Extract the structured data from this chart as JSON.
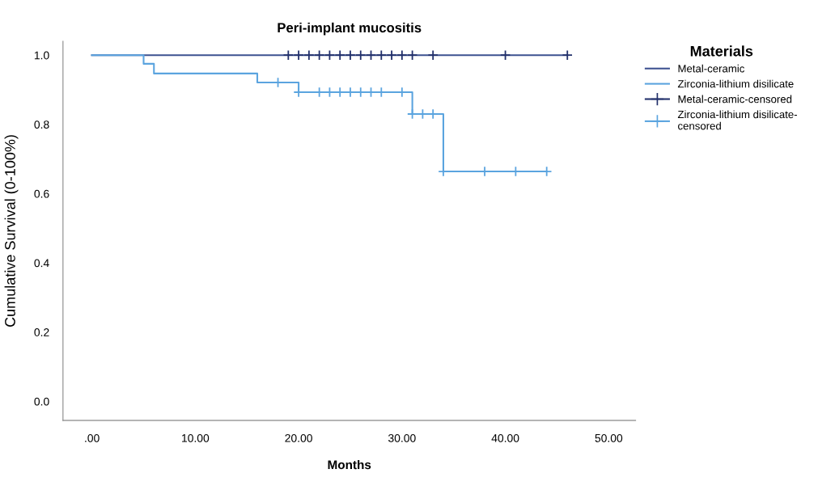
{
  "chart_data": {
    "type": "step",
    "title": "Peri-implant mucositis",
    "xlabel": "Months",
    "ylabel": "Cumulative Survival (0-100%)",
    "legend_title": "Materials",
    "legend": "right",
    "xlim": [
      -2.8,
      52.6
    ],
    "ylim": [
      -0.055,
      1.04
    ],
    "xticks": [
      {
        "value": 0,
        "label": ".00"
      },
      {
        "value": 10,
        "label": "10.00"
      },
      {
        "value": 20,
        "label": "20.00"
      },
      {
        "value": 30,
        "label": "30.00"
      },
      {
        "value": 40,
        "label": "40.00"
      },
      {
        "value": 50,
        "label": "50.00"
      }
    ],
    "yticks": [
      {
        "value": 0,
        "label": "0.0"
      },
      {
        "value": 0.2,
        "label": "0.2"
      },
      {
        "value": 0.4,
        "label": "0.4"
      },
      {
        "value": 0.6,
        "label": "0.6"
      },
      {
        "value": 0.8,
        "label": "0.8"
      },
      {
        "value": 1.0,
        "label": "1.0"
      }
    ],
    "grid": false,
    "series": [
      {
        "name": "Metal-ceramic",
        "color": "#3d5291",
        "x": [
          0,
          46
        ],
        "values": [
          1.0,
          1.0
        ]
      },
      {
        "name": "Zirconia-lithium disilicate",
        "color": "#5ba4df",
        "x": [
          0,
          5,
          6,
          16,
          20,
          31,
          34,
          44
        ],
        "values": [
          1.0,
          0.975,
          0.947,
          0.921,
          0.893,
          0.83,
          0.664,
          0.664
        ]
      },
      {
        "name": "Metal-ceramic-censored",
        "type": "scatter",
        "marker": "cross",
        "color": "#22306b",
        "x": [
          19,
          20,
          21,
          22,
          23,
          24,
          25,
          26,
          27,
          28,
          29,
          30,
          31,
          33,
          40,
          46
        ],
        "values": [
          1.0,
          1.0,
          1.0,
          1.0,
          1.0,
          1.0,
          1.0,
          1.0,
          1.0,
          1.0,
          1.0,
          1.0,
          1.0,
          1.0,
          1.0,
          1.0
        ]
      },
      {
        "name": "Zirconia-lithium disilicate-\ncensored",
        "type": "scatter",
        "marker": "cross",
        "color": "#5ba4df",
        "x": [
          18,
          20,
          22,
          23,
          24,
          25,
          26,
          27,
          28,
          30,
          31,
          32,
          33,
          34,
          38,
          41,
          44
        ],
        "values": [
          0.921,
          0.893,
          0.893,
          0.893,
          0.893,
          0.893,
          0.893,
          0.893,
          0.893,
          0.893,
          0.83,
          0.83,
          0.83,
          0.664,
          0.664,
          0.664,
          0.664
        ]
      }
    ]
  }
}
